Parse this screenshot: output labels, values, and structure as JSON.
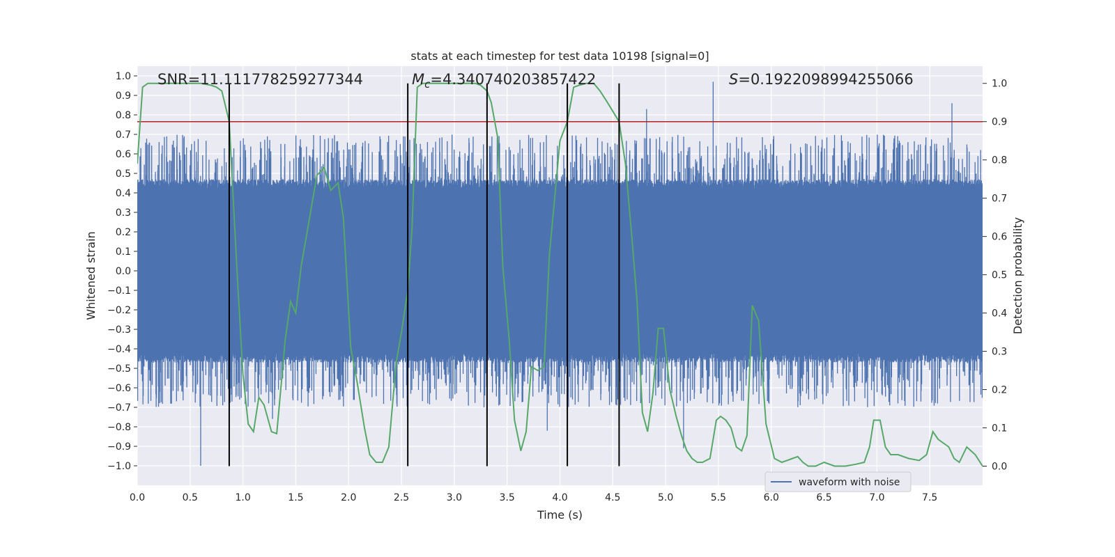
{
  "chart_data": {
    "type": "line",
    "title": "stats at each timestep for test data 10198 [signal=0]",
    "xlabel": "Time (s)",
    "ylabel_left": "Whitened strain",
    "ylabel_right": "Detection probability",
    "xlim": [
      0,
      8.0
    ],
    "ylim_left": [
      -1.1,
      1.05
    ],
    "ylim_right": [
      -0.05,
      1.045
    ],
    "x_ticks": [
      "0.0",
      "0.5",
      "1.0",
      "1.5",
      "2.0",
      "2.5",
      "3.0",
      "3.5",
      "4.0",
      "4.5",
      "5.0",
      "5.5",
      "6.0",
      "6.5",
      "7.0",
      "7.5"
    ],
    "y_ticks_left": [
      "−1.0",
      "−0.9",
      "−0.8",
      "−0.7",
      "−0.6",
      "−0.5",
      "−0.4",
      "−0.3",
      "−0.2",
      "−0.1",
      "0.0",
      "0.1",
      "0.2",
      "0.3",
      "0.4",
      "0.5",
      "0.6",
      "0.7",
      "0.8",
      "0.9",
      "1.0"
    ],
    "y_ticks_right": [
      "0.0",
      "0.1",
      "0.2",
      "0.3",
      "0.4",
      "0.5",
      "0.6",
      "0.7",
      "0.8",
      "0.9",
      "1.0"
    ],
    "grid": true,
    "legend_position": "lower-right",
    "annotations": {
      "snr": "SNR=11.111778259277344",
      "mc_prefix": "M",
      "mc_sub": "c",
      "mc_value": "=4.340740203857422",
      "s_prefix": "S",
      "s_value": "=0.1922098994255066"
    },
    "threshold": {
      "value": 0.9,
      "axis": "right",
      "color": "#b22222"
    },
    "vertical_lines": [
      0.87,
      2.56,
      3.31,
      4.07,
      4.56
    ],
    "series": [
      {
        "name": "waveform with noise",
        "axis": "left",
        "color": "#4c72b0",
        "kind": "noise",
        "core_amplitude": 0.42,
        "typical_peak_range": [
          0.45,
          0.7
        ],
        "notable_peaks": [
          {
            "x": 0.6,
            "y": -1.0
          },
          {
            "x": 1.28,
            "y": -0.76
          },
          {
            "x": 3.88,
            "y": -0.82
          },
          {
            "x": 4.82,
            "y": 0.83
          },
          {
            "x": 5.17,
            "y": -0.91
          },
          {
            "x": 5.45,
            "y": 0.97
          },
          {
            "x": 5.79,
            "y": 0.61
          },
          {
            "x": 7.71,
            "y": 0.86
          }
        ]
      },
      {
        "axis": "right",
        "color": "#55a868",
        "x": [
          0.0,
          0.05,
          0.1,
          0.2,
          0.3,
          0.4,
          0.5,
          0.6,
          0.7,
          0.75,
          0.8,
          0.87,
          0.95,
          1.0,
          1.05,
          1.1,
          1.15,
          1.2,
          1.27,
          1.32,
          1.4,
          1.45,
          1.5,
          1.55,
          1.6,
          1.65,
          1.7,
          1.77,
          1.83,
          1.9,
          1.95,
          2.02,
          2.08,
          2.15,
          2.2,
          2.26,
          2.32,
          2.38,
          2.45,
          2.5,
          2.56,
          2.6,
          2.65,
          2.7,
          2.8,
          2.9,
          3.0,
          3.1,
          3.2,
          3.25,
          3.31,
          3.35,
          3.41,
          3.46,
          3.52,
          3.57,
          3.63,
          3.68,
          3.73,
          3.79,
          3.85,
          3.9,
          3.95,
          4.0,
          4.07,
          4.13,
          4.18,
          4.25,
          4.32,
          4.38,
          4.45,
          4.56,
          4.62,
          4.68,
          4.73,
          4.78,
          4.83,
          4.88,
          4.93,
          4.98,
          5.04,
          5.1,
          5.15,
          5.2,
          5.25,
          5.3,
          5.35,
          5.42,
          5.48,
          5.52,
          5.57,
          5.62,
          5.67,
          5.72,
          5.77,
          5.82,
          5.88,
          5.95,
          6.03,
          6.1,
          6.15,
          6.2,
          6.25,
          6.3,
          6.35,
          6.42,
          6.5,
          6.6,
          6.7,
          6.8,
          6.88,
          6.93,
          6.97,
          7.03,
          7.08,
          7.13,
          7.2,
          7.3,
          7.4,
          7.47,
          7.53,
          7.58,
          7.63,
          7.68,
          7.73,
          7.78,
          7.85,
          7.93,
          8.0
        ],
        "values": [
          0.79,
          0.99,
          1.0,
          1.0,
          1.0,
          1.0,
          1.0,
          1.0,
          0.995,
          0.99,
          0.98,
          0.9,
          0.48,
          0.24,
          0.11,
          0.09,
          0.18,
          0.16,
          0.09,
          0.085,
          0.33,
          0.43,
          0.4,
          0.52,
          0.6,
          0.68,
          0.76,
          0.78,
          0.72,
          0.74,
          0.65,
          0.31,
          0.22,
          0.1,
          0.03,
          0.01,
          0.01,
          0.05,
          0.27,
          0.35,
          0.46,
          0.62,
          0.99,
          1.0,
          1.0,
          1.0,
          1.0,
          1.0,
          1.0,
          0.995,
          0.98,
          0.95,
          0.86,
          0.52,
          0.33,
          0.12,
          0.04,
          0.09,
          0.26,
          0.25,
          0.26,
          0.55,
          0.7,
          0.85,
          0.9,
          0.99,
          0.995,
          1.0,
          1.0,
          0.98,
          0.95,
          0.9,
          0.79,
          0.6,
          0.43,
          0.14,
          0.09,
          0.19,
          0.36,
          0.36,
          0.2,
          0.13,
          0.08,
          0.04,
          0.02,
          0.01,
          0.01,
          0.02,
          0.12,
          0.13,
          0.12,
          0.1,
          0.05,
          0.04,
          0.08,
          0.42,
          0.38,
          0.11,
          0.02,
          0.01,
          0.015,
          0.02,
          0.025,
          0.01,
          0.0,
          0.0,
          0.01,
          0.0,
          0.0,
          0.005,
          0.01,
          0.05,
          0.12,
          0.12,
          0.05,
          0.03,
          0.03,
          0.02,
          0.015,
          0.03,
          0.09,
          0.07,
          0.06,
          0.05,
          0.02,
          0.01,
          0.05,
          0.03,
          0.0
        ]
      }
    ]
  }
}
